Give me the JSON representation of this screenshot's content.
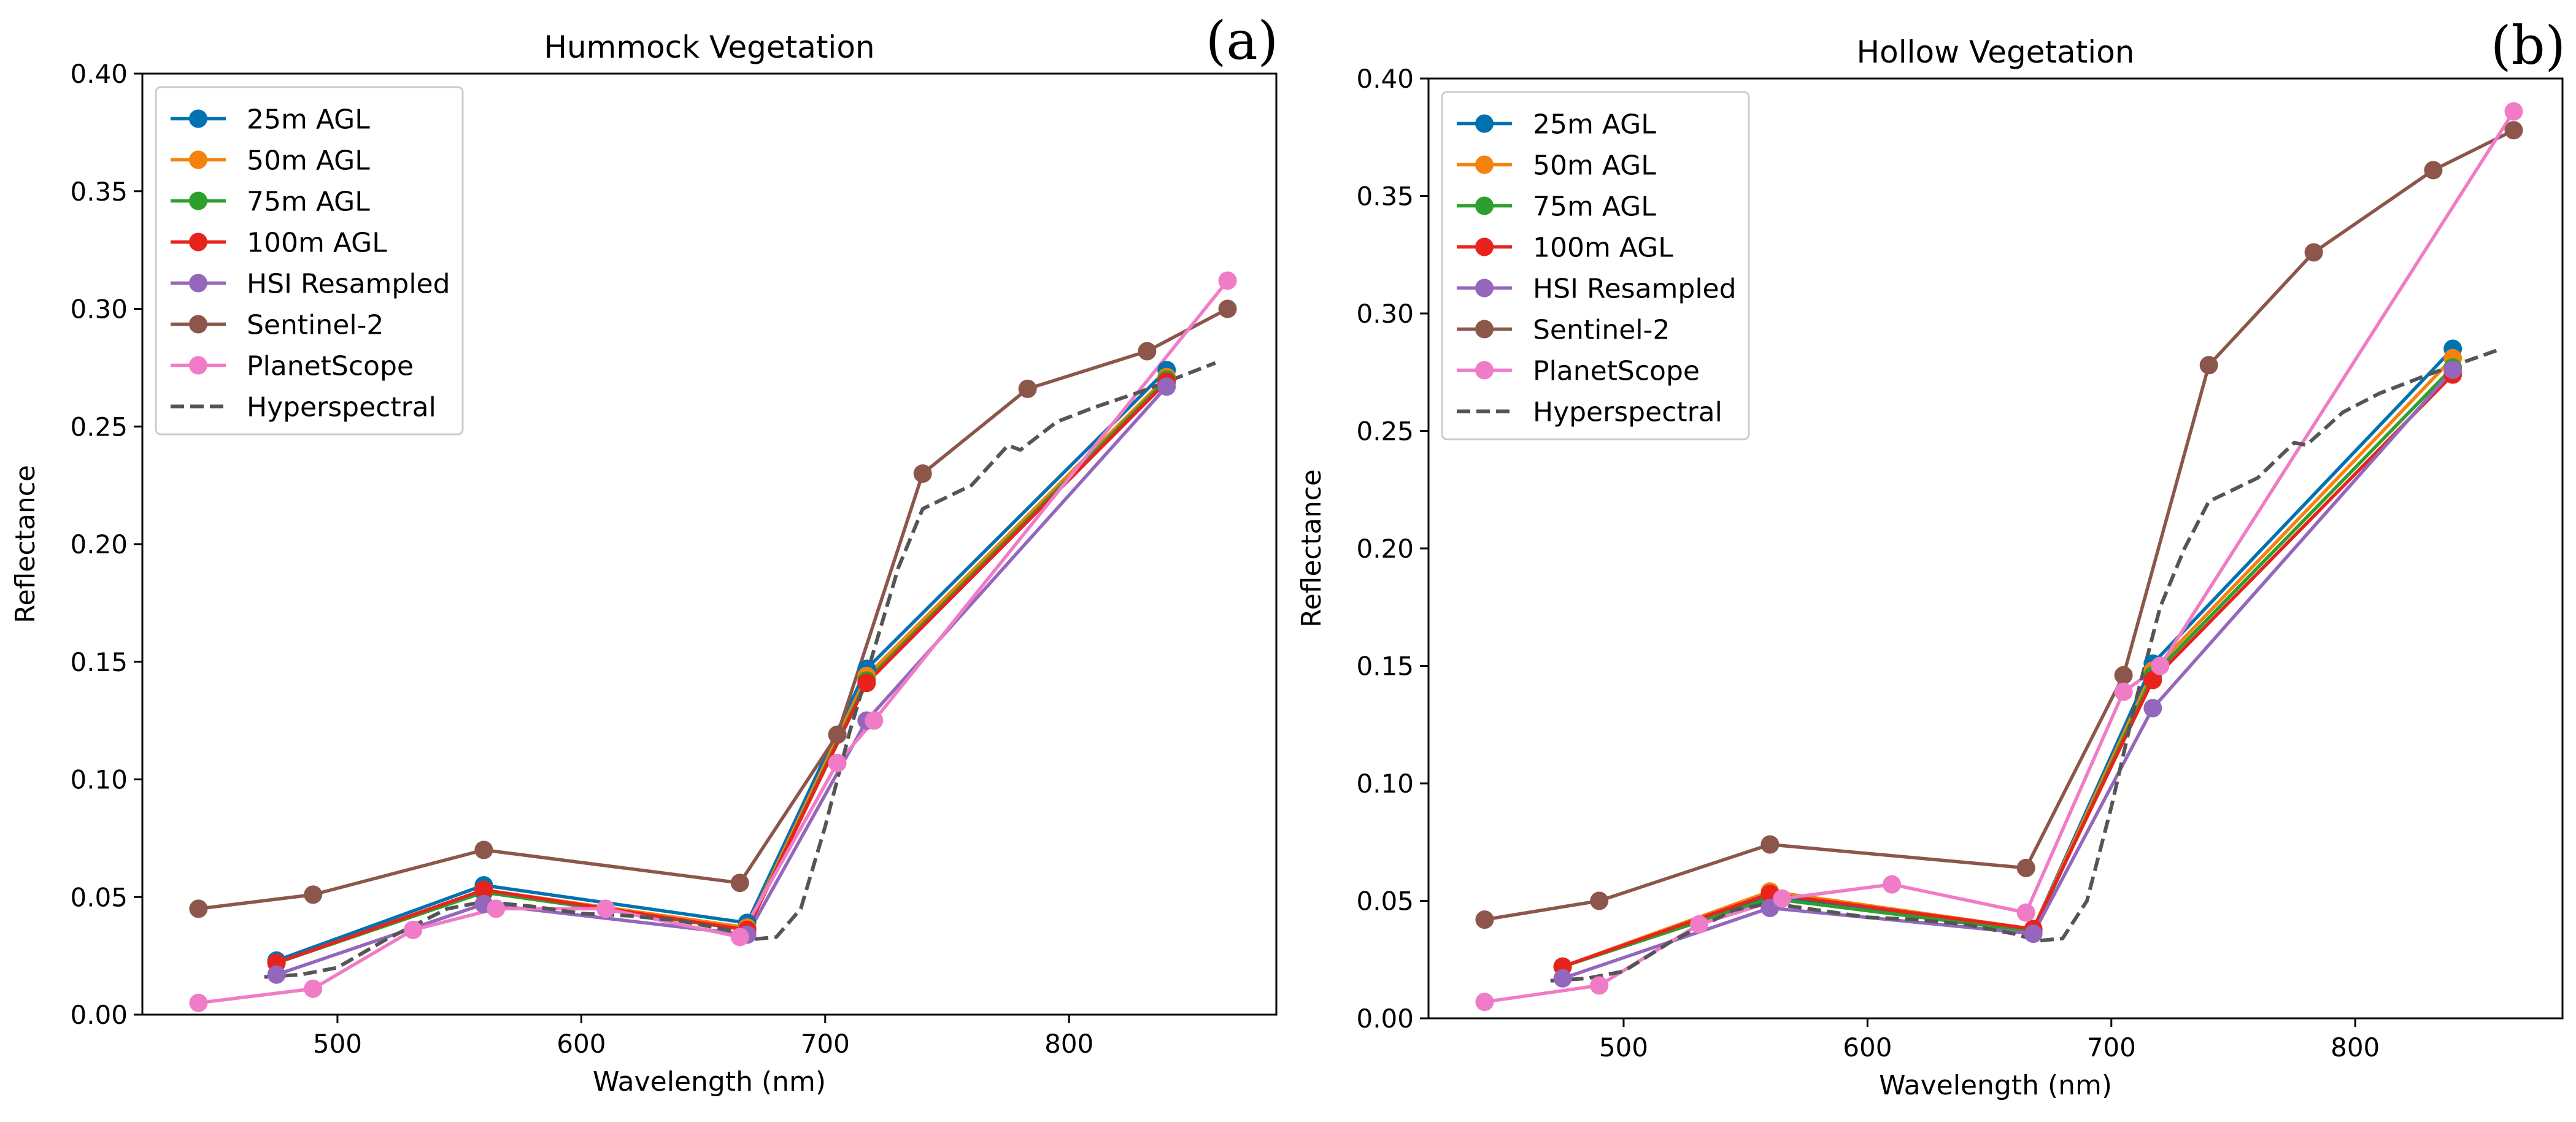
{
  "chart_data": [
    {
      "type": "line",
      "panel": "(a)",
      "title": "Hummock Vegetation",
      "xlabel": "Wavelength (nm)",
      "ylabel": "Reflectance",
      "xlim": [
        420,
        885
      ],
      "ylim": [
        0.0,
        0.4
      ],
      "xticks": [
        500,
        600,
        700,
        800
      ],
      "yticks": [
        0.0,
        0.05,
        0.1,
        0.15,
        0.2,
        0.25,
        0.3,
        0.35,
        0.4
      ],
      "xtick_labels": [
        "500",
        "600",
        "700",
        "800"
      ],
      "ytick_labels": [
        "0.00",
        "0.05",
        "0.10",
        "0.15",
        "0.20",
        "0.25",
        "0.30",
        "0.35",
        "0.40"
      ],
      "legend_position": "upper-left",
      "series": [
        {
          "name": "25m AGL",
          "color": "#0072B2",
          "marker": true,
          "x": [
            475,
            560,
            668,
            717,
            840
          ],
          "y": [
            0.023,
            0.055,
            0.039,
            0.147,
            0.274
          ]
        },
        {
          "name": "50m AGL",
          "color": "#F5820D",
          "marker": true,
          "x": [
            475,
            560,
            668,
            717,
            840
          ],
          "y": [
            0.022,
            0.053,
            0.037,
            0.144,
            0.271
          ]
        },
        {
          "name": "75m AGL",
          "color": "#2CA02C",
          "marker": true,
          "x": [
            475,
            560,
            668,
            717,
            840
          ],
          "y": [
            0.022,
            0.052,
            0.036,
            0.142,
            0.27
          ]
        },
        {
          "name": "100m AGL",
          "color": "#E8231E",
          "marker": true,
          "x": [
            475,
            560,
            668,
            717,
            840
          ],
          "y": [
            0.022,
            0.053,
            0.036,
            0.141,
            0.269
          ]
        },
        {
          "name": "HSI Resampled",
          "color": "#9467BD",
          "marker": true,
          "x": [
            475,
            560,
            668,
            717,
            840
          ],
          "y": [
            0.017,
            0.047,
            0.034,
            0.125,
            0.267
          ]
        },
        {
          "name": "Sentinel-2",
          "color": "#8C564B",
          "marker": true,
          "x": [
            443,
            490,
            560,
            665,
            705,
            740,
            783,
            832,
            865
          ],
          "y": [
            0.045,
            0.051,
            0.07,
            0.056,
            0.119,
            0.23,
            0.266,
            0.282,
            0.3
          ]
        },
        {
          "name": "PlanetScope",
          "color": "#F07BC6",
          "marker": true,
          "x": [
            443,
            490,
            531,
            565,
            610,
            665,
            705,
            720,
            865
          ],
          "y": [
            0.005,
            0.011,
            0.036,
            0.045,
            0.045,
            0.033,
            0.107,
            0.125,
            0.312
          ]
        },
        {
          "name": "Hyperspectral",
          "color": "#555555",
          "marker": false,
          "dashed": true,
          "x": [
            470,
            485,
            500,
            520,
            545,
            560,
            580,
            600,
            620,
            640,
            660,
            670,
            680,
            690,
            700,
            710,
            720,
            730,
            740,
            760,
            775,
            780,
            795,
            810,
            830,
            860
          ],
          "y": [
            0.016,
            0.017,
            0.02,
            0.032,
            0.045,
            0.048,
            0.046,
            0.043,
            0.042,
            0.04,
            0.036,
            0.032,
            0.033,
            0.045,
            0.08,
            0.12,
            0.155,
            0.19,
            0.215,
            0.225,
            0.242,
            0.24,
            0.252,
            0.258,
            0.265,
            0.277
          ]
        }
      ]
    },
    {
      "type": "line",
      "panel": "(b)",
      "title": "Hollow Vegetation",
      "xlabel": "Wavelength (nm)",
      "ylabel": "Reflectance",
      "xlim": [
        420,
        885
      ],
      "ylim": [
        0.0,
        0.4
      ],
      "xticks": [
        500,
        600,
        700,
        800
      ],
      "yticks": [
        0.0,
        0.05,
        0.1,
        0.15,
        0.2,
        0.25,
        0.3,
        0.35,
        0.4
      ],
      "xtick_labels": [
        "500",
        "600",
        "700",
        "800"
      ],
      "ytick_labels": [
        "0.00",
        "0.05",
        "0.10",
        "0.15",
        "0.20",
        "0.25",
        "0.30",
        "0.35",
        "0.40"
      ],
      "legend_position": "upper-left",
      "series": [
        {
          "name": "25m AGL",
          "color": "#0072B2",
          "marker": true,
          "x": [
            475,
            560,
            668,
            717,
            840
          ],
          "y": [
            0.022,
            0.052,
            0.038,
            0.151,
            0.285
          ]
        },
        {
          "name": "50m AGL",
          "color": "#F5820D",
          "marker": true,
          "x": [
            475,
            560,
            668,
            717,
            840
          ],
          "y": [
            0.022,
            0.054,
            0.038,
            0.148,
            0.281
          ]
        },
        {
          "name": "75m AGL",
          "color": "#2CA02C",
          "marker": true,
          "x": [
            475,
            560,
            668,
            717,
            840
          ],
          "y": [
            0.022,
            0.051,
            0.037,
            0.146,
            0.277
          ]
        },
        {
          "name": "100m AGL",
          "color": "#E8231E",
          "marker": true,
          "x": [
            475,
            560,
            668,
            717,
            840
          ],
          "y": [
            0.022,
            0.053,
            0.038,
            0.144,
            0.274
          ]
        },
        {
          "name": "HSI Resampled",
          "color": "#9467BD",
          "marker": true,
          "x": [
            475,
            560,
            668,
            717,
            840
          ],
          "y": [
            0.017,
            0.047,
            0.036,
            0.132,
            0.276
          ]
        },
        {
          "name": "Sentinel-2",
          "color": "#8C564B",
          "marker": true,
          "x": [
            443,
            490,
            560,
            665,
            705,
            740,
            783,
            832,
            865
          ],
          "y": [
            0.042,
            0.05,
            0.074,
            0.064,
            0.146,
            0.278,
            0.326,
            0.361,
            0.378
          ]
        },
        {
          "name": "PlanetScope",
          "color": "#F07BC6",
          "marker": true,
          "x": [
            443,
            490,
            531,
            565,
            610,
            665,
            705,
            720,
            865
          ],
          "y": [
            0.007,
            0.014,
            0.04,
            0.051,
            0.057,
            0.045,
            0.139,
            0.15,
            0.386
          ]
        },
        {
          "name": "Hyperspectral",
          "color": "#555555",
          "marker": false,
          "dashed": true,
          "x": [
            470,
            485,
            500,
            520,
            545,
            560,
            580,
            600,
            620,
            640,
            660,
            670,
            680,
            690,
            700,
            710,
            720,
            730,
            740,
            760,
            775,
            780,
            795,
            810,
            830,
            860
          ],
          "y": [
            0.016,
            0.017,
            0.02,
            0.033,
            0.046,
            0.049,
            0.046,
            0.043,
            0.042,
            0.04,
            0.036,
            0.033,
            0.034,
            0.05,
            0.09,
            0.135,
            0.175,
            0.2,
            0.22,
            0.23,
            0.245,
            0.244,
            0.258,
            0.266,
            0.274,
            0.285
          ]
        }
      ]
    }
  ]
}
